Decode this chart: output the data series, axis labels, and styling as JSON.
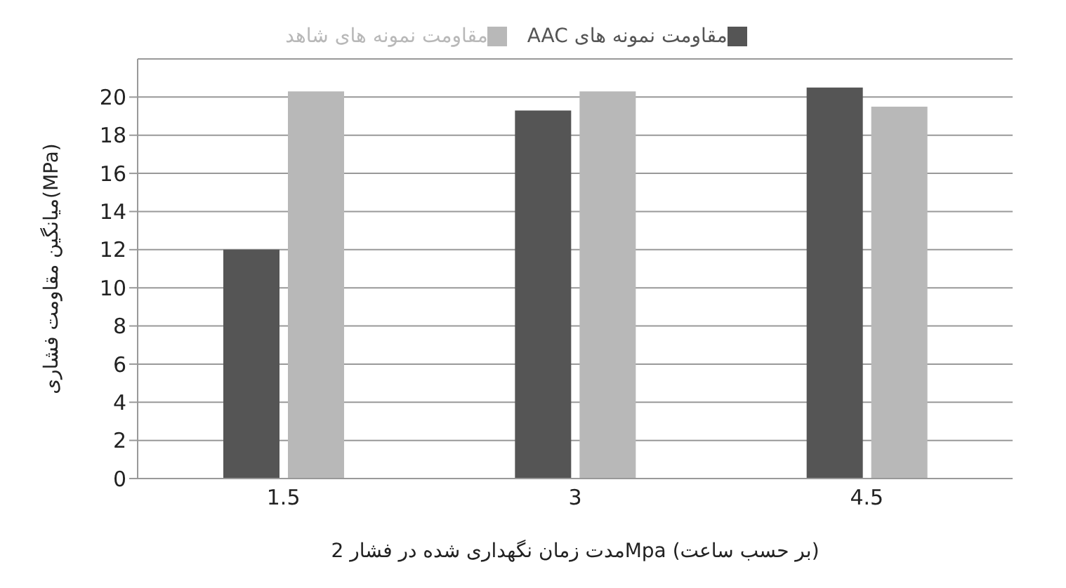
{
  "chart_data": {
    "type": "bar",
    "xlabel": "مدت زمان نگهداری شده در فشار 2Mpa (بر حسب ساعت)",
    "ylabel": "میانگین مقاومت فشاری(MPa)",
    "categories": [
      "1.5",
      "3",
      "4.5"
    ],
    "series": [
      {
        "name": "مقاومت نمونه های AAC",
        "color": "#555555",
        "values": [
          12,
          19.3,
          20.5
        ]
      },
      {
        "name": "مقاومت نمونه های شاهد",
        "color": "#b8b8b8",
        "values": [
          20.3,
          20.3,
          19.5
        ]
      }
    ],
    "ylim": [
      0,
      22
    ],
    "yticks": [
      0,
      2,
      4,
      6,
      8,
      10,
      12,
      14,
      16,
      18,
      20
    ],
    "grid": "y",
    "legend": "top"
  }
}
